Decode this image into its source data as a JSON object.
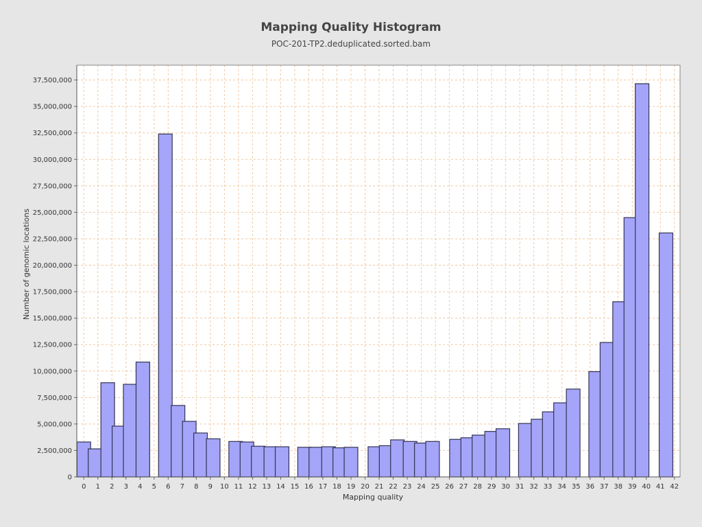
{
  "chart_data": {
    "type": "bar",
    "title": "Mapping Quality Histogram",
    "subtitle": "POC-201-TP2.deduplicated.sorted.bam",
    "xlabel": "Mapping quality",
    "ylabel": "Number of genomic locations",
    "xlim": [
      -0.5,
      42.4
    ],
    "ylim": [
      0,
      38900000
    ],
    "x_ticks": [
      0,
      1,
      2,
      3,
      4,
      5,
      6,
      7,
      8,
      9,
      10,
      11,
      12,
      13,
      14,
      15,
      16,
      17,
      18,
      19,
      20,
      21,
      22,
      23,
      24,
      25,
      26,
      27,
      28,
      29,
      30,
      31,
      32,
      33,
      34,
      35,
      36,
      37,
      38,
      39,
      40,
      41,
      42
    ],
    "y_ticks": [
      0,
      2500000,
      5000000,
      7500000,
      10000000,
      12500000,
      15000000,
      17500000,
      20000000,
      22500000,
      25000000,
      27500000,
      30000000,
      32500000,
      35000000,
      37500000
    ],
    "y_tick_labels": [
      "0",
      "2,500,000",
      "5,000,000",
      "7,500,000",
      "10,000,000",
      "12,500,000",
      "15,000,000",
      "17,500,000",
      "20,000,000",
      "22,500,000",
      "25,000,000",
      "27,500,000",
      "30,000,000",
      "32,500,000",
      "35,000,000",
      "37,500,000"
    ],
    "grid": true,
    "bar_fill": "#a4a4f8",
    "bar_stroke": "#333355",
    "grid_color": "#f0c8a0",
    "plot_background": "#ffffff",
    "bars": [
      {
        "x": 0,
        "value": 3300000
      },
      {
        "x": 0.8,
        "value": 2650000
      },
      {
        "x": 1.7,
        "value": 8900000
      },
      {
        "x": 2.5,
        "value": 4800000
      },
      {
        "x": 3.3,
        "value": 8750000
      },
      {
        "x": 4.2,
        "value": 10850000
      },
      {
        "x": 5.8,
        "value": 32400000
      },
      {
        "x": 6.7,
        "value": 6750000
      },
      {
        "x": 7.5,
        "value": 5250000
      },
      {
        "x": 8.3,
        "value": 4150000
      },
      {
        "x": 9.2,
        "value": 3600000
      },
      {
        "x": 10.8,
        "value": 3350000
      },
      {
        "x": 11.6,
        "value": 3300000
      },
      {
        "x": 12.4,
        "value": 2900000
      },
      {
        "x": 13.3,
        "value": 2850000
      },
      {
        "x": 14.1,
        "value": 2850000
      },
      {
        "x": 15.7,
        "value": 2800000
      },
      {
        "x": 16.5,
        "value": 2800000
      },
      {
        "x": 17.4,
        "value": 2850000
      },
      {
        "x": 18.2,
        "value": 2750000
      },
      {
        "x": 19.0,
        "value": 2800000
      },
      {
        "x": 20.7,
        "value": 2850000
      },
      {
        "x": 21.5,
        "value": 2950000
      },
      {
        "x": 22.3,
        "value": 3500000
      },
      {
        "x": 23.2,
        "value": 3350000
      },
      {
        "x": 24.0,
        "value": 3200000
      },
      {
        "x": 24.8,
        "value": 3350000
      },
      {
        "x": 26.5,
        "value": 3550000
      },
      {
        "x": 27.3,
        "value": 3700000
      },
      {
        "x": 28.1,
        "value": 3950000
      },
      {
        "x": 29.0,
        "value": 4300000
      },
      {
        "x": 29.8,
        "value": 4550000
      },
      {
        "x": 31.4,
        "value": 5050000
      },
      {
        "x": 32.3,
        "value": 5450000
      },
      {
        "x": 33.1,
        "value": 6150000
      },
      {
        "x": 33.9,
        "value": 7000000
      },
      {
        "x": 34.8,
        "value": 8300000
      },
      {
        "x": 36.4,
        "value": 9950000
      },
      {
        "x": 37.2,
        "value": 12700000
      },
      {
        "x": 38.1,
        "value": 16550000
      },
      {
        "x": 38.9,
        "value": 24500000
      },
      {
        "x": 39.7,
        "value": 37150000
      },
      {
        "x": 41.4,
        "value": 23050000
      }
    ]
  }
}
